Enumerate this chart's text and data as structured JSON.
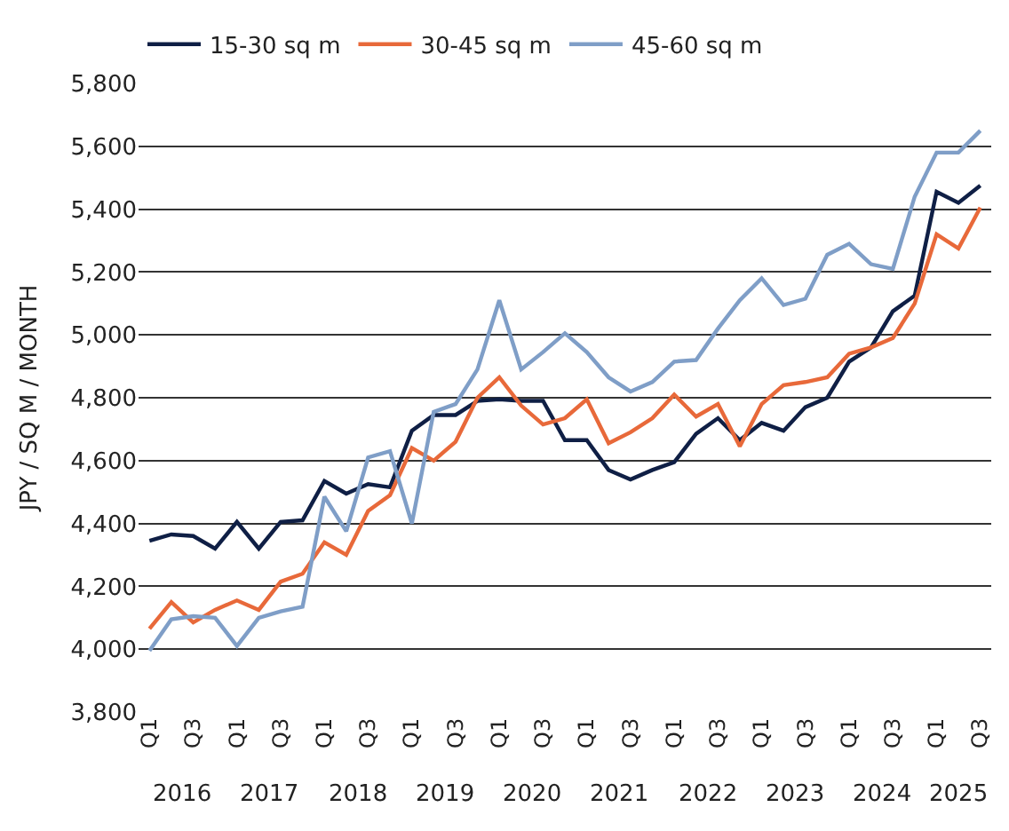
{
  "chart_data": {
    "type": "line",
    "ylabel": "JPY / SQ M / MONTH",
    "categories": [
      "Q1",
      null,
      "Q3",
      null,
      "Q1",
      null,
      "Q3",
      null,
      "Q1",
      null,
      "Q3",
      null,
      "Q1",
      null,
      "Q3",
      null,
      "Q1",
      null,
      "Q3",
      null,
      "Q1",
      null,
      "Q3",
      null,
      "Q1",
      null,
      "Q3",
      null,
      "Q1",
      null,
      "Q3",
      null,
      "Q1",
      null,
      "Q3",
      null,
      "Q1",
      null,
      "Q3"
    ],
    "annotations": [
      "2016",
      "2017",
      "2018",
      "2019",
      "2020",
      "2021",
      "2022",
      "2023",
      "2024",
      "2025"
    ],
    "series": [
      {
        "name": "15-30 sq m",
        "color": "#0f1f45",
        "values": [
          4345,
          4365,
          4360,
          4320,
          4405,
          4320,
          4405,
          4410,
          4535,
          4495,
          4525,
          4515,
          4695,
          4745,
          4745,
          4790,
          4795,
          4790,
          4790,
          4665,
          4665,
          4570,
          4540,
          4570,
          4595,
          4685,
          4735,
          4665,
          4720,
          4695,
          4770,
          4800,
          4915,
          4960,
          5075,
          5125,
          5455,
          5420,
          5475
        ]
      },
      {
        "name": "30-45 sq m",
        "color": "#e8693a",
        "values": [
          4065,
          4150,
          4085,
          4125,
          4155,
          4125,
          4215,
          4240,
          4340,
          4300,
          4440,
          4490,
          4640,
          4600,
          4660,
          4800,
          4865,
          4775,
          4715,
          4735,
          4795,
          4655,
          4690,
          4735,
          4810,
          4740,
          4780,
          4645,
          4780,
          4840,
          4850,
          4865,
          4940,
          4960,
          4990,
          5100,
          5320,
          5275,
          5405
        ]
      },
      {
        "name": "45-60 sq m",
        "color": "#7f9ec7",
        "values": [
          3995,
          4095,
          4105,
          4100,
          4010,
          4100,
          4120,
          4135,
          4485,
          4375,
          4610,
          4630,
          4400,
          4755,
          4780,
          4890,
          5110,
          4890,
          4945,
          5005,
          4945,
          4865,
          4820,
          4850,
          4915,
          4920,
          5020,
          5110,
          5180,
          5095,
          5115,
          5255,
          5290,
          5225,
          5210,
          5440,
          5580,
          5580,
          5650
        ]
      }
    ],
    "ylim": [
      3800,
      5800
    ],
    "yticks": [
      {
        "value": 3800,
        "label": "3,800"
      },
      {
        "value": 4000,
        "label": "4,000"
      },
      {
        "value": 4200,
        "label": "4,200"
      },
      {
        "value": 4400,
        "label": "4,400"
      },
      {
        "value": 4600,
        "label": "4,600"
      },
      {
        "value": 4800,
        "label": "4,800"
      },
      {
        "value": 5000,
        "label": "5,000"
      },
      {
        "value": 5200,
        "label": "5,200"
      },
      {
        "value": 5400,
        "label": "5,400"
      },
      {
        "value": 5600,
        "label": "5,600"
      },
      {
        "value": 5800,
        "label": "5,800"
      }
    ],
    "grid": "y",
    "legend": "top left",
    "marker": "none",
    "line_style": "solid"
  }
}
